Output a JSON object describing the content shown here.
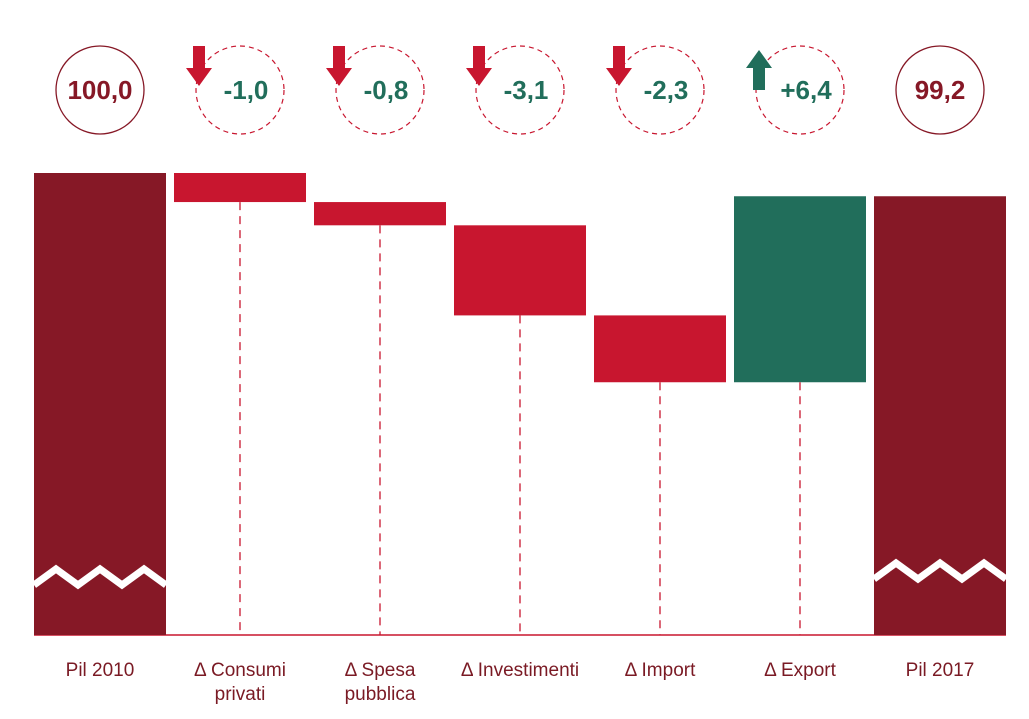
{
  "chart_data": {
    "type": "waterfall",
    "colors": {
      "total": "#861826",
      "decrease": "#c8162f",
      "increase": "#216e5b",
      "total_text": "#861826",
      "delta_text": "#216e5b",
      "base_line": "#c8162f"
    },
    "axis_break": true,
    "steps": [
      {
        "kind": "total",
        "label": [
          "Pil 2010"
        ],
        "value": 100.0,
        "display": "100,0"
      },
      {
        "kind": "delta",
        "label": [
          "Δ Consumi",
          "privati"
        ],
        "value": -1.0,
        "display": "-1,0",
        "direction": "down"
      },
      {
        "kind": "delta",
        "label": [
          "Δ Spesa",
          "pubblica"
        ],
        "value": -0.8,
        "display": "-0,8",
        "direction": "down"
      },
      {
        "kind": "delta",
        "label": [
          "Δ Investimenti"
        ],
        "value": -3.1,
        "display": "-3,1",
        "direction": "down"
      },
      {
        "kind": "delta",
        "label": [
          "Δ Import"
        ],
        "value": -2.3,
        "display": "-2,3",
        "direction": "down"
      },
      {
        "kind": "delta",
        "label": [
          "Δ Export"
        ],
        "value": 6.4,
        "display": "+6,4",
        "direction": "up"
      },
      {
        "kind": "total",
        "label": [
          "Pil 2017"
        ],
        "value": 99.2,
        "display": "99,2"
      }
    ]
  }
}
